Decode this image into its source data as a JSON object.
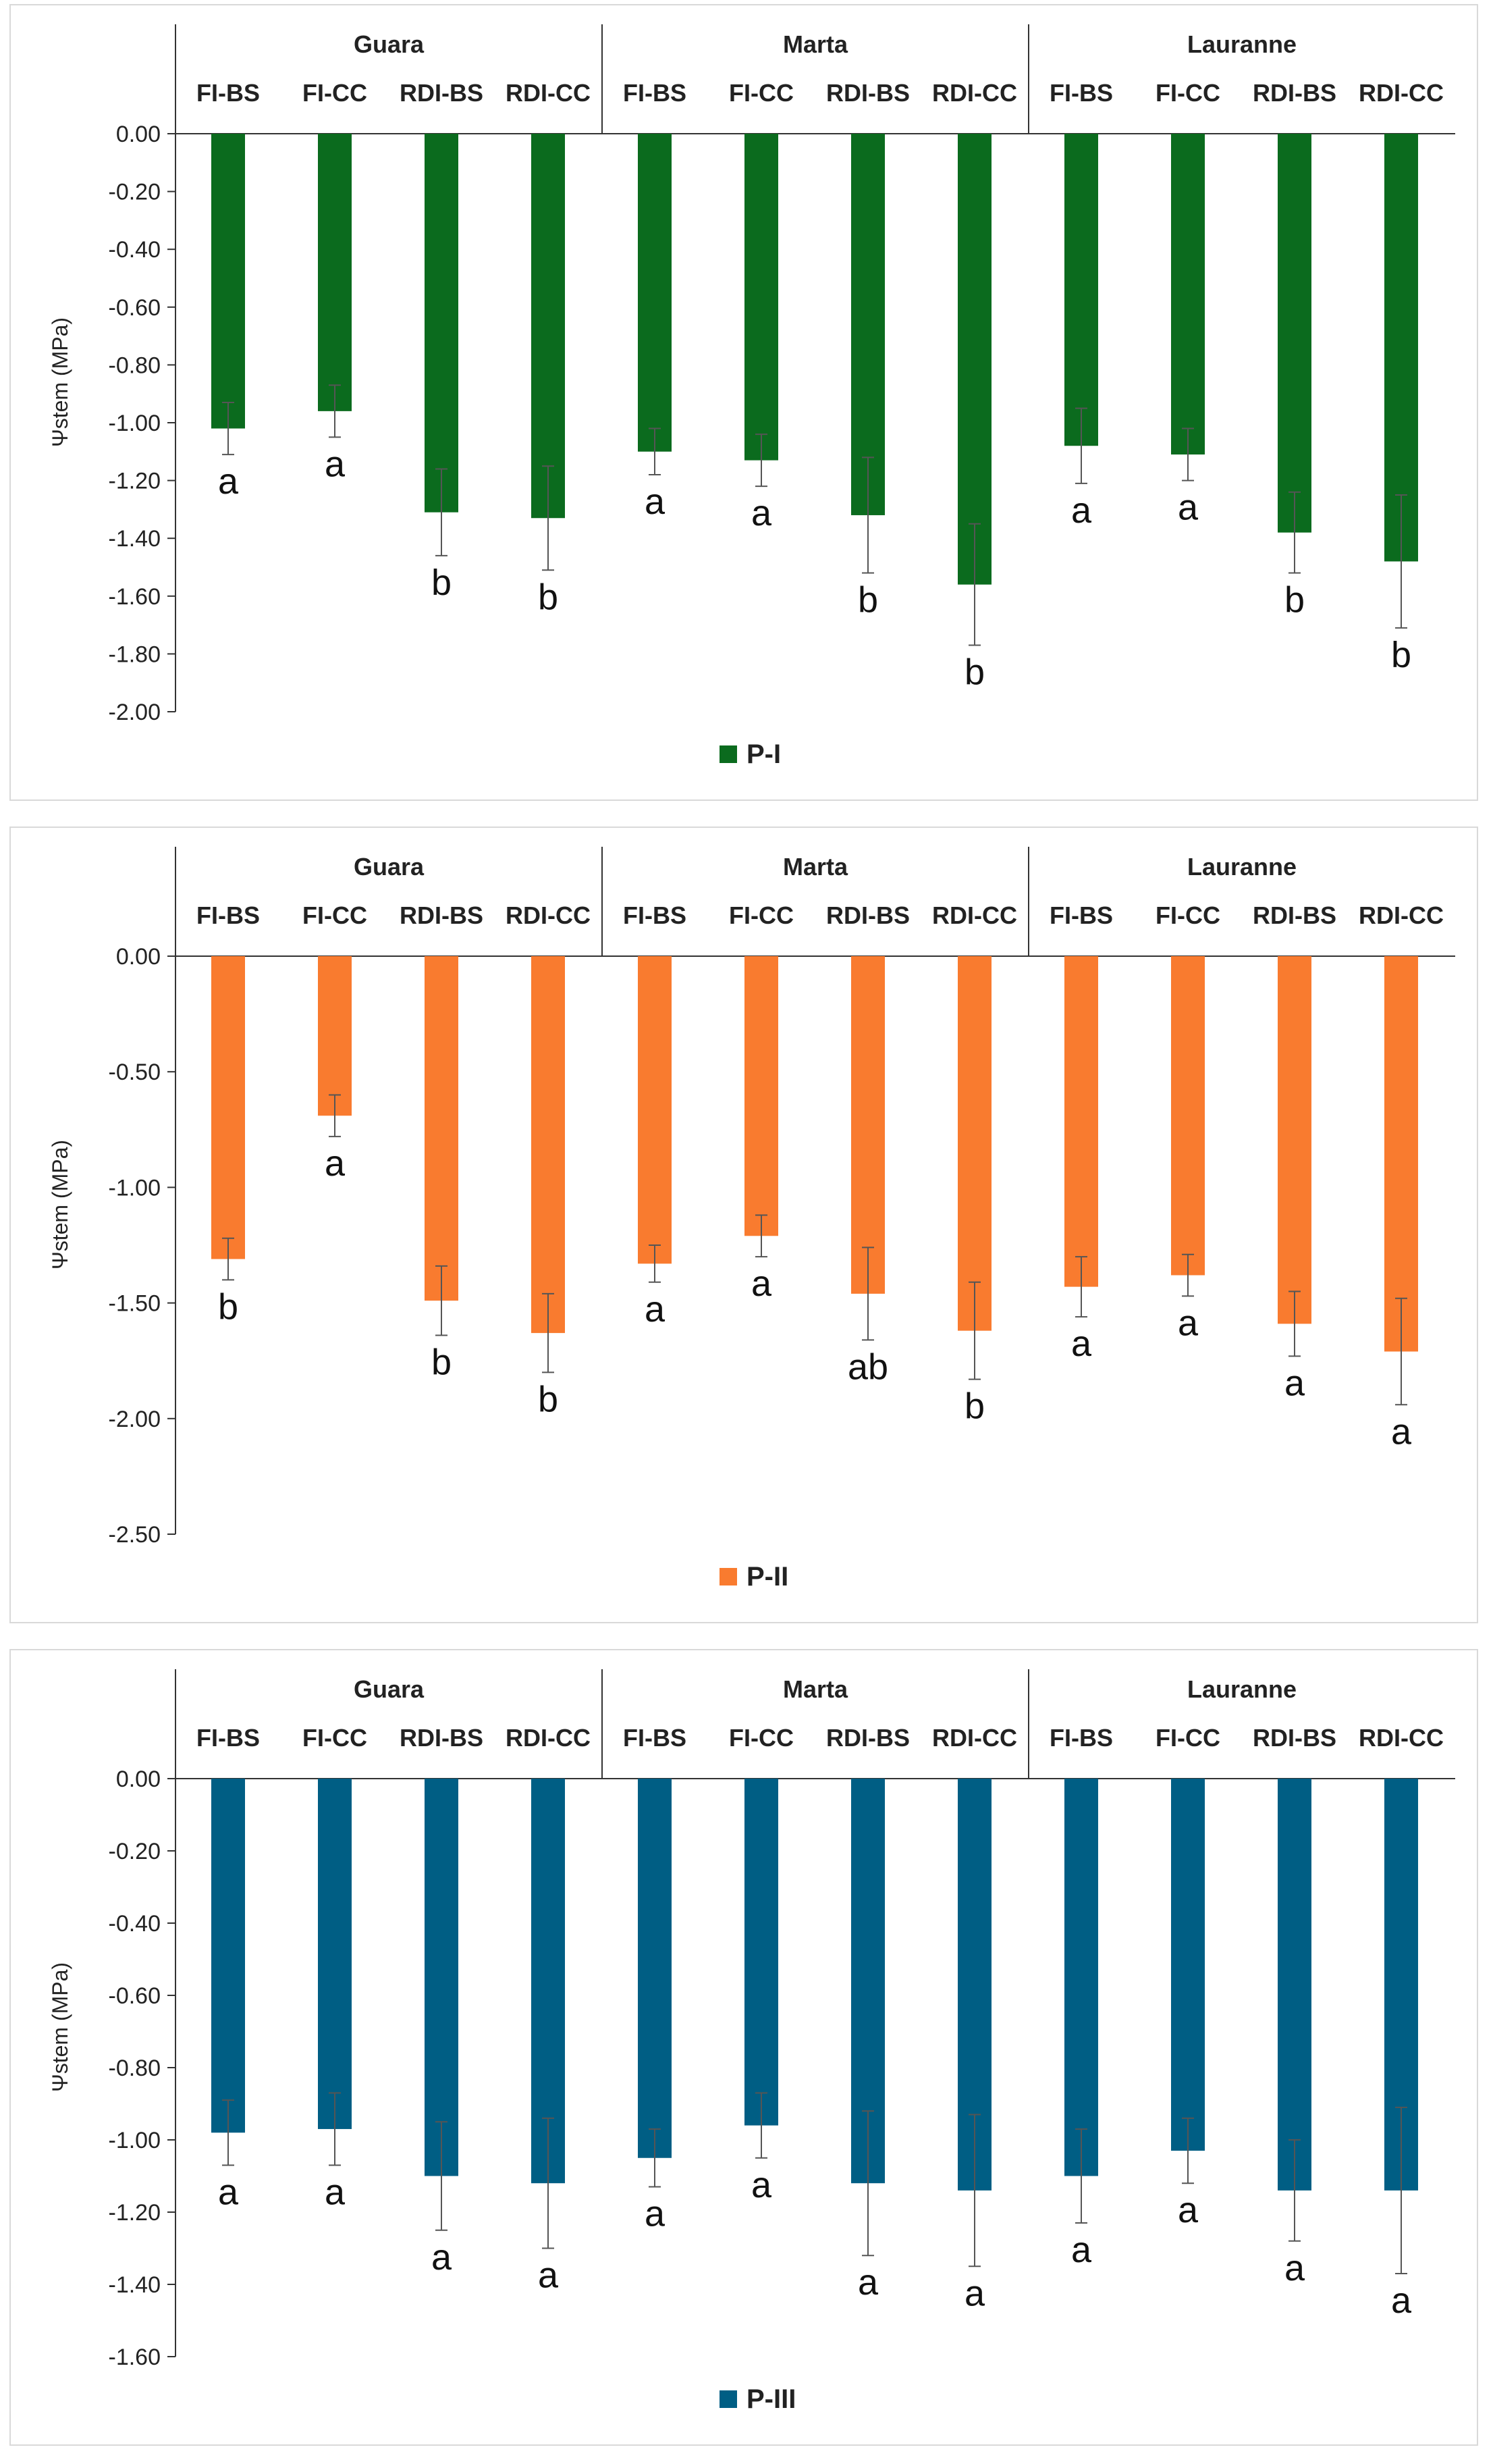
{
  "chart_data": [
    {
      "type": "bar",
      "title": "",
      "legend": "P-I",
      "color": "#0b6b1e",
      "ylabel": "Ψstem (MPa)",
      "ylim": [
        -2.0,
        0.0
      ],
      "yticks": [
        "0.00",
        "-0.20",
        "-0.40",
        "-0.60",
        "-0.80",
        "-1.00",
        "-1.20",
        "-1.40",
        "-1.60",
        "-1.80",
        "-2.00"
      ],
      "cultivars": [
        "Guara",
        "Marta",
        "Lauranne"
      ],
      "treatments": [
        "FI-BS",
        "FI-CC",
        "RDI-BS",
        "RDI-CC"
      ],
      "values": [
        -1.02,
        -0.96,
        -1.31,
        -1.33,
        -1.1,
        -1.13,
        -1.32,
        -1.56,
        -1.08,
        -1.11,
        -1.38,
        -1.48
      ],
      "errors": [
        0.09,
        0.09,
        0.15,
        0.18,
        0.08,
        0.09,
        0.2,
        0.21,
        0.13,
        0.09,
        0.14,
        0.23
      ],
      "letters": [
        "a",
        "a",
        "b",
        "b",
        "a",
        "a",
        "b",
        "b",
        "a",
        "a",
        "b",
        "b"
      ]
    },
    {
      "type": "bar",
      "title": "",
      "legend": "P-II",
      "color": "#f97b2f",
      "ylabel": "Ψstem (MPa)",
      "ylim": [
        -2.5,
        0.0
      ],
      "yticks": [
        "0.00",
        "-0.50",
        "-1.00",
        "-1.50",
        "-2.00",
        "-2.50"
      ],
      "cultivars": [
        "Guara",
        "Marta",
        "Lauranne"
      ],
      "treatments": [
        "FI-BS",
        "FI-CC",
        "RDI-BS",
        "RDI-CC"
      ],
      "values": [
        -1.31,
        -0.69,
        -1.49,
        -1.63,
        -1.33,
        -1.21,
        -1.46,
        -1.62,
        -1.43,
        -1.38,
        -1.59,
        -1.71
      ],
      "errors": [
        0.09,
        0.09,
        0.15,
        0.17,
        0.08,
        0.09,
        0.2,
        0.21,
        0.13,
        0.09,
        0.14,
        0.23
      ],
      "letters": [
        "b",
        "a",
        "b",
        "b",
        "a",
        "a",
        "ab",
        "b",
        "a",
        "a",
        "a",
        "a"
      ]
    },
    {
      "type": "bar",
      "title": "",
      "legend": "P-III",
      "color": "#005e84",
      "ylabel": "Ψstem (MPa)",
      "ylim": [
        -1.6,
        0.0
      ],
      "yticks": [
        "0.00",
        "-0.20",
        "-0.40",
        "-0.60",
        "-0.80",
        "-1.00",
        "-1.20",
        "-1.40",
        "-1.60"
      ],
      "cultivars": [
        "Guara",
        "Marta",
        "Lauranne"
      ],
      "treatments": [
        "FI-BS",
        "FI-CC",
        "RDI-BS",
        "RDI-CC"
      ],
      "values": [
        -0.98,
        -0.97,
        -1.1,
        -1.12,
        -1.05,
        -0.96,
        -1.12,
        -1.14,
        -1.1,
        -1.03,
        -1.14,
        -1.14
      ],
      "errors": [
        0.09,
        0.1,
        0.15,
        0.18,
        0.08,
        0.09,
        0.2,
        0.21,
        0.13,
        0.09,
        0.14,
        0.23
      ],
      "letters": [
        "a",
        "a",
        "a",
        "a",
        "a",
        "a",
        "a",
        "a",
        "a",
        "a",
        "a",
        "a"
      ]
    }
  ]
}
